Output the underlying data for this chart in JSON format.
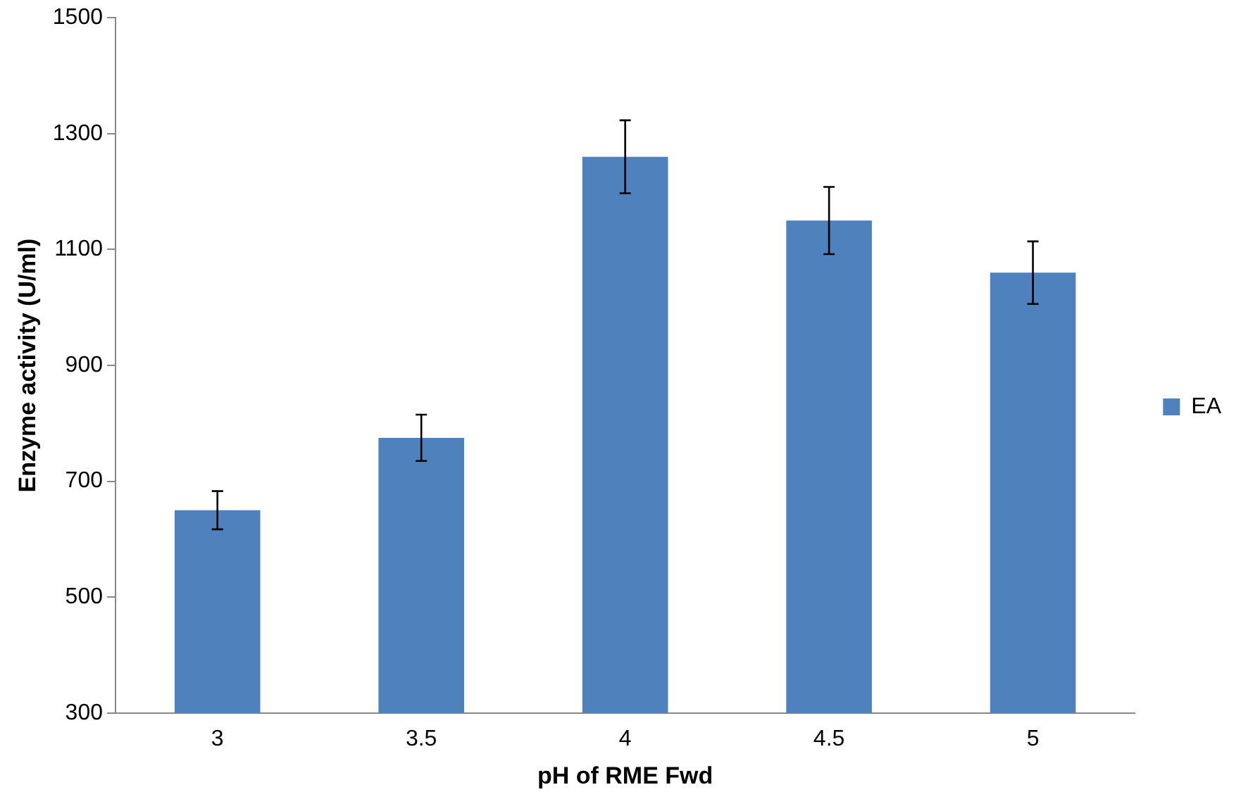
{
  "chart_data": {
    "type": "bar",
    "xlabel": "pH of RME Fwd",
    "ylabel": "Enzyme activity (U/ml)",
    "categories": [
      "3",
      "3.5",
      "4",
      "4.5",
      "5"
    ],
    "series": [
      {
        "name": "EA",
        "color": "#4f81bd",
        "values": [
          650,
          775,
          1260,
          1150,
          1060
        ],
        "errors": [
          33,
          40,
          63,
          58,
          54
        ]
      }
    ],
    "ylim": [
      300,
      1500
    ],
    "yticks": [
      300,
      500,
      700,
      900,
      1100,
      1300,
      1500
    ],
    "grid": false,
    "legend": "right"
  }
}
